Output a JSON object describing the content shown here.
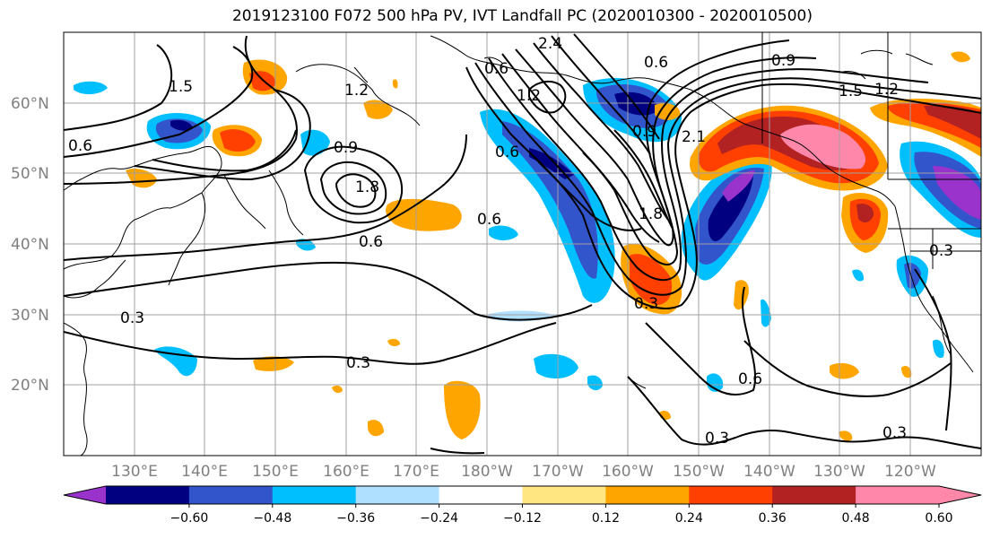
{
  "title": "2019123100 F072 500 hPa PV, IVT Landfall PC (2020010300 - 2020010500)",
  "lat_labels": [
    "60°N",
    "50°N",
    "40°N",
    "30°N",
    "20°N"
  ],
  "lon_labels": [
    "130°E",
    "140°E",
    "150°E",
    "160°E",
    "170°E",
    "180°W",
    "170°W",
    "160°W",
    "150°W",
    "140°W",
    "130°W",
    "120°W"
  ],
  "colorbar": {
    "ticks": [
      "−0.60",
      "−0.48",
      "−0.36",
      "−0.24",
      "−0.12",
      "0.12",
      "0.24",
      "0.36",
      "0.48",
      "0.60"
    ],
    "colors": [
      "#9933cc",
      "#000080",
      "#3355cc",
      "#00bfff",
      "#b0e0ff",
      "#ffffff",
      "#ffe680",
      "#ffa500",
      "#ff4000",
      "#b22222",
      "#ff88aa",
      "#ff88aa"
    ]
  },
  "contour_labels": [
    "2.4",
    "0.6",
    "0.9",
    "1.5",
    "1.2",
    "0.6",
    "1.5",
    "1.2",
    "0.9",
    "0.6",
    "1.8",
    "0.6",
    "0.3",
    "0.3",
    "1.8",
    "2.1",
    "0.6",
    "0.9",
    "1.2",
    "0.3",
    "0.3",
    "0.6",
    "0.3",
    "0.3",
    "0.6"
  ]
}
